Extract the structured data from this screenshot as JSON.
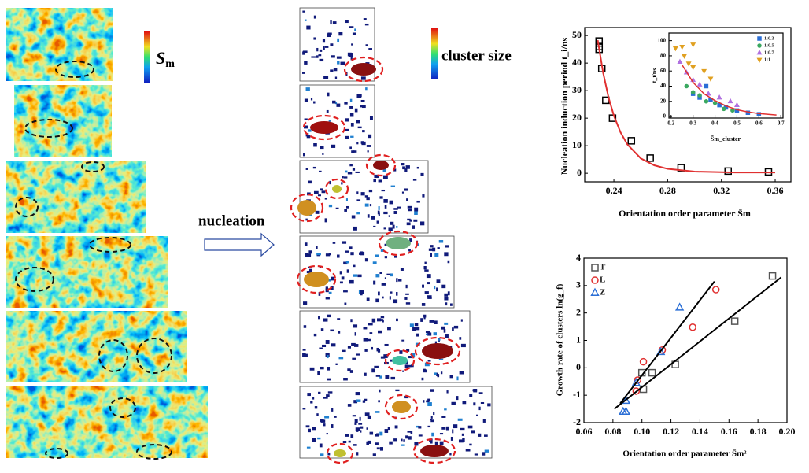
{
  "figure_labels": {
    "colorbar_1_symbol": "S",
    "colorbar_1_sub": "m",
    "colorbar_2": "cluster size",
    "process": "nucleation"
  },
  "chart_data": [
    {
      "type": "scatter",
      "ylabel": "Nucleation induction period t_i/ns",
      "xlabel": "Orientation order parameter S̄m",
      "xlim": [
        0.2183,
        0.3717
      ],
      "ylim": [
        -3.1,
        52.9
      ],
      "xticks": [
        0.24,
        0.28,
        0.32,
        0.36
      ],
      "yticks": [
        0,
        10,
        20,
        30,
        40,
        50
      ],
      "series": [
        {
          "marker": "square",
          "color": "#000000",
          "filled": false,
          "x": [
            0.229,
            0.229,
            0.229,
            0.231,
            0.234,
            0.239,
            0.253,
            0.267,
            0.29,
            0.325,
            0.355
          ],
          "values": [
            48,
            46,
            45,
            38,
            26.5,
            20,
            11.8,
            5.5,
            2,
            0.8,
            0.5
          ]
        },
        {
          "marker": "line",
          "color": "#e03030",
          "x": [
            0.228,
            0.232,
            0.236,
            0.24,
            0.245,
            0.25,
            0.26,
            0.27,
            0.28,
            0.3,
            0.33,
            0.36
          ],
          "values": [
            48.3,
            36.5,
            27.6,
            20.9,
            14.8,
            10.5,
            5.4,
            2.9,
            1.6,
            0.6,
            0.3,
            0.3
          ]
        }
      ]
    },
    {
      "type": "scatter",
      "ylabel": "t_i/ns",
      "xlabel": "S̄m_cluster",
      "xlim": [
        0.19,
        0.71
      ],
      "ylim": [
        -2,
        110
      ],
      "xticks": [
        0.2,
        0.3,
        0.4,
        0.5,
        0.6,
        0.7
      ],
      "yticks": [
        0,
        20,
        40,
        60,
        80,
        100
      ],
      "legend": "top-right",
      "series": [
        {
          "name": "1:0.3",
          "marker": "square",
          "color": "#2b6fd6",
          "filled": true,
          "x": [
            0.3,
            0.33,
            0.36,
            0.38,
            0.42,
            0.45,
            0.5,
            0.55,
            0.6
          ],
          "values": [
            30,
            25,
            40,
            22,
            15,
            12,
            8,
            5,
            3
          ]
        },
        {
          "name": "1:0.5",
          "marker": "circle",
          "color": "#3aa860",
          "filled": true,
          "x": [
            0.27,
            0.3,
            0.33,
            0.36,
            0.4,
            0.44,
            0.48
          ],
          "values": [
            40,
            32,
            28,
            20,
            18,
            10,
            8
          ]
        },
        {
          "name": "1:0.7",
          "marker": "triangle",
          "color": "#b070e0",
          "filled": true,
          "x": [
            0.24,
            0.27,
            0.3,
            0.33,
            0.37,
            0.42,
            0.47,
            0.5
          ],
          "values": [
            72,
            58,
            48,
            42,
            30,
            25,
            20,
            15
          ]
        },
        {
          "name": "1:1",
          "marker": "triangle-down",
          "color": "#e0a020",
          "filled": true,
          "x": [
            0.22,
            0.25,
            0.26,
            0.28,
            0.3,
            0.3,
            0.35,
            0.38
          ],
          "values": [
            90,
            92,
            80,
            70,
            95,
            65,
            60,
            50
          ]
        },
        {
          "marker": "line",
          "color": "#e03030",
          "x": [
            0.25,
            0.3,
            0.35,
            0.4,
            0.45,
            0.5,
            0.55,
            0.6,
            0.68
          ],
          "values": [
            68,
            45,
            30,
            21,
            14,
            9,
            6,
            4,
            2
          ]
        }
      ]
    },
    {
      "type": "scatter",
      "ylabel": "Growth rate of clusters ln(g_f)",
      "xlabel": "Orientation order parameter S̄m²",
      "xlim": [
        0.06,
        0.2
      ],
      "ylim": [
        -2,
        4
      ],
      "xticks": [
        0.06,
        0.08,
        {
          "value": 0.1,
          "label": "0.10"
        },
        0.12,
        0.14,
        0.16,
        0.18,
        {
          "value": 0.2,
          "label": "0.20"
        }
      ],
      "yticks": [
        -2,
        -1,
        0,
        1,
        2,
        3,
        4
      ],
      "legend": "top-left",
      "series": [
        {
          "name": "T",
          "marker": "square",
          "color": "#555555",
          "filled": false,
          "x": [
            0.19,
            0.164,
            0.123,
            0.107,
            0.101,
            0.1
          ],
          "values": [
            3.35,
            1.7,
            0.12,
            -0.18,
            -0.78,
            -0.18
          ]
        },
        {
          "name": "L",
          "marker": "circle",
          "color": "#e03030",
          "filled": false,
          "x": [
            0.151,
            0.135,
            0.114,
            0.101,
            0.097,
            0.096
          ],
          "values": [
            2.85,
            1.48,
            0.65,
            0.22,
            -0.45,
            -0.85
          ]
        },
        {
          "name": "Z",
          "marker": "triangle",
          "color": "#2b6fd6",
          "filled": false,
          "x": [
            0.126,
            0.113,
            0.096,
            0.089,
            0.089,
            0.087
          ],
          "values": [
            2.2,
            0.58,
            -0.55,
            -1.2,
            -1.6,
            -1.6
          ]
        },
        {
          "marker": "line",
          "color": "#000000",
          "x": [
            0.081,
            0.196
          ],
          "values": [
            -1.5,
            3.3
          ]
        },
        {
          "marker": "line",
          "color": "#000000",
          "x": [
            0.085,
            0.15
          ],
          "values": [
            -1.3,
            3.15
          ]
        }
      ]
    }
  ]
}
